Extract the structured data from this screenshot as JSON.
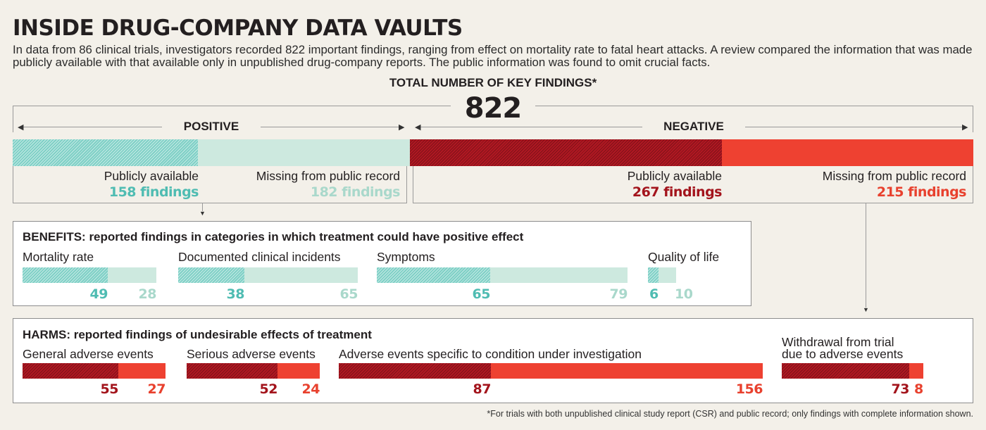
{
  "title": "INSIDE DRUG-COMPANY DATA VAULTS",
  "description": "In data from 86 clinical trials, investigators recorded 822 important findings, ranging from effect on mortality rate to fatal heart attacks. A review compared the information that was made publicly available with that available only in unpublished drug-company reports. The public information was found to omit crucial facts.",
  "total_label": "TOTAL NUMBER OF KEY FINDINGS*",
  "footnote": "*For trials with both unpublished clinical study report (CSR) and public record; only findings with complete information shown.",
  "colors": {
    "teal_hatched": "#7fd0c6",
    "teal_solid": "#cde9df",
    "red_hatched": "#b01822",
    "red_solid": "#ee4131",
    "teal_text": "#4fbcb2",
    "light_teal_text": "#a9d8cb",
    "dark_red_text": "#a3141c",
    "red_text": "#e8412e"
  },
  "chart_data": [
    {
      "type": "bar",
      "title": "TOTAL NUMBER OF KEY FINDINGS*",
      "total": "822",
      "stacked": true,
      "orientation": "horizontal",
      "groups": [
        {
          "name": "POSITIVE",
          "segments": [
            {
              "label": "Publicly available",
              "value": 158,
              "value_label": "158 findings",
              "style": "teal-hatched"
            },
            {
              "label": "Missing from public record",
              "value": 182,
              "value_label": "182 findings",
              "style": "teal-solid"
            }
          ]
        },
        {
          "name": "NEGATIVE",
          "segments": [
            {
              "label": "Publicly available",
              "value": 267,
              "value_label": "267 findings",
              "style": "red-hatched"
            },
            {
              "label": "Missing from public record",
              "value": 215,
              "value_label": "215 findings",
              "style": "red-solid"
            }
          ]
        }
      ]
    },
    {
      "type": "bar",
      "title": "BENEFITS: reported findings in categories in which treatment could have positive effect",
      "stacked": true,
      "orientation": "horizontal",
      "series_names": [
        "Publicly available",
        "Missing from public record"
      ],
      "categories": [
        {
          "name": "Mortality rate",
          "public": 49,
          "missing": 28
        },
        {
          "name": "Documented clinical incidents",
          "public": 38,
          "missing": 65
        },
        {
          "name": "Symptoms",
          "public": 65,
          "missing": 79
        },
        {
          "name": "Quality of life",
          "public": 6,
          "missing": 10
        }
      ]
    },
    {
      "type": "bar",
      "title": "HARMS: reported findings of undesirable effects of treatment",
      "stacked": true,
      "orientation": "horizontal",
      "series_names": [
        "Publicly available",
        "Missing from public record"
      ],
      "categories": [
        {
          "name": "General adverse events",
          "name_line2": "",
          "public": 55,
          "missing": 27
        },
        {
          "name": "Serious adverse events",
          "name_line2": "",
          "public": 52,
          "missing": 24
        },
        {
          "name": "Adverse events specific to condition under investigation",
          "name_line2": "",
          "public": 87,
          "missing": 156
        },
        {
          "name": "Withdrawal from trial",
          "name_line2": "due to adverse events",
          "public": 73,
          "missing": 8
        }
      ]
    }
  ]
}
